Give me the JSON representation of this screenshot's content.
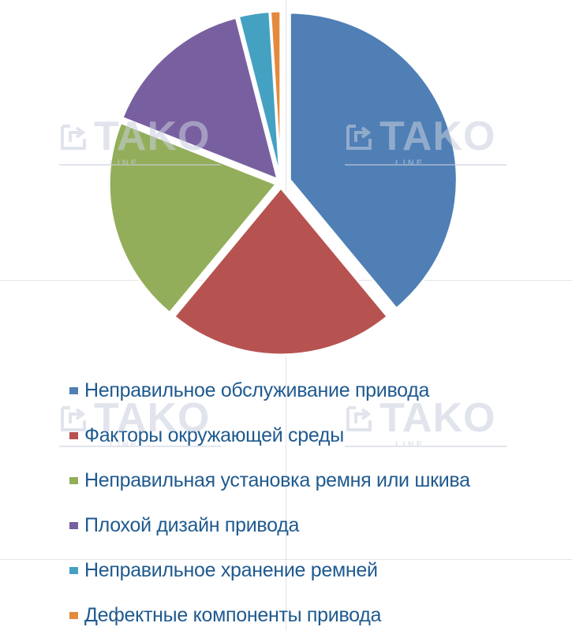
{
  "chart_data": {
    "type": "pie",
    "title": "",
    "exploded": true,
    "start_angle_deg": 0,
    "direction": "clockwise",
    "legend_position": "bottom",
    "series": [
      {
        "name": "Неправильное обслуживание привода",
        "value": 39,
        "color": "#4f7fb5"
      },
      {
        "name": "Факторы окружающей среды",
        "value": 22,
        "color": "#b65350"
      },
      {
        "name": "Неправильная установка ремня или шкива",
        "value": 20,
        "color": "#92ae5a"
      },
      {
        "name": "Плохой дизайн привода",
        "value": 15,
        "color": "#7860a0"
      },
      {
        "name": "Неправильное хранение ремней",
        "value": 3,
        "color": "#45a1c1"
      },
      {
        "name": "Дефектные компоненты привода",
        "value": 1,
        "color": "#e48a3c"
      }
    ],
    "units": "%"
  },
  "legend": {
    "items": [
      {
        "label": "Неправильное обслуживание привода",
        "color": "#4f7fb5"
      },
      {
        "label": "Факторы окружающей среды",
        "color": "#b65350"
      },
      {
        "label": "Неправильная установка ремня или шкива",
        "color": "#92ae5a"
      },
      {
        "label": "Плохой дизайн привода",
        "color": "#7860a0"
      },
      {
        "label": "Неправильное хранение ремней",
        "color": "#45a1c1"
      },
      {
        "label": "Дефектные компоненты привода",
        "color": "#e48a3c"
      }
    ]
  },
  "watermark": {
    "brand": "TAKO",
    "sub": "LINE"
  }
}
